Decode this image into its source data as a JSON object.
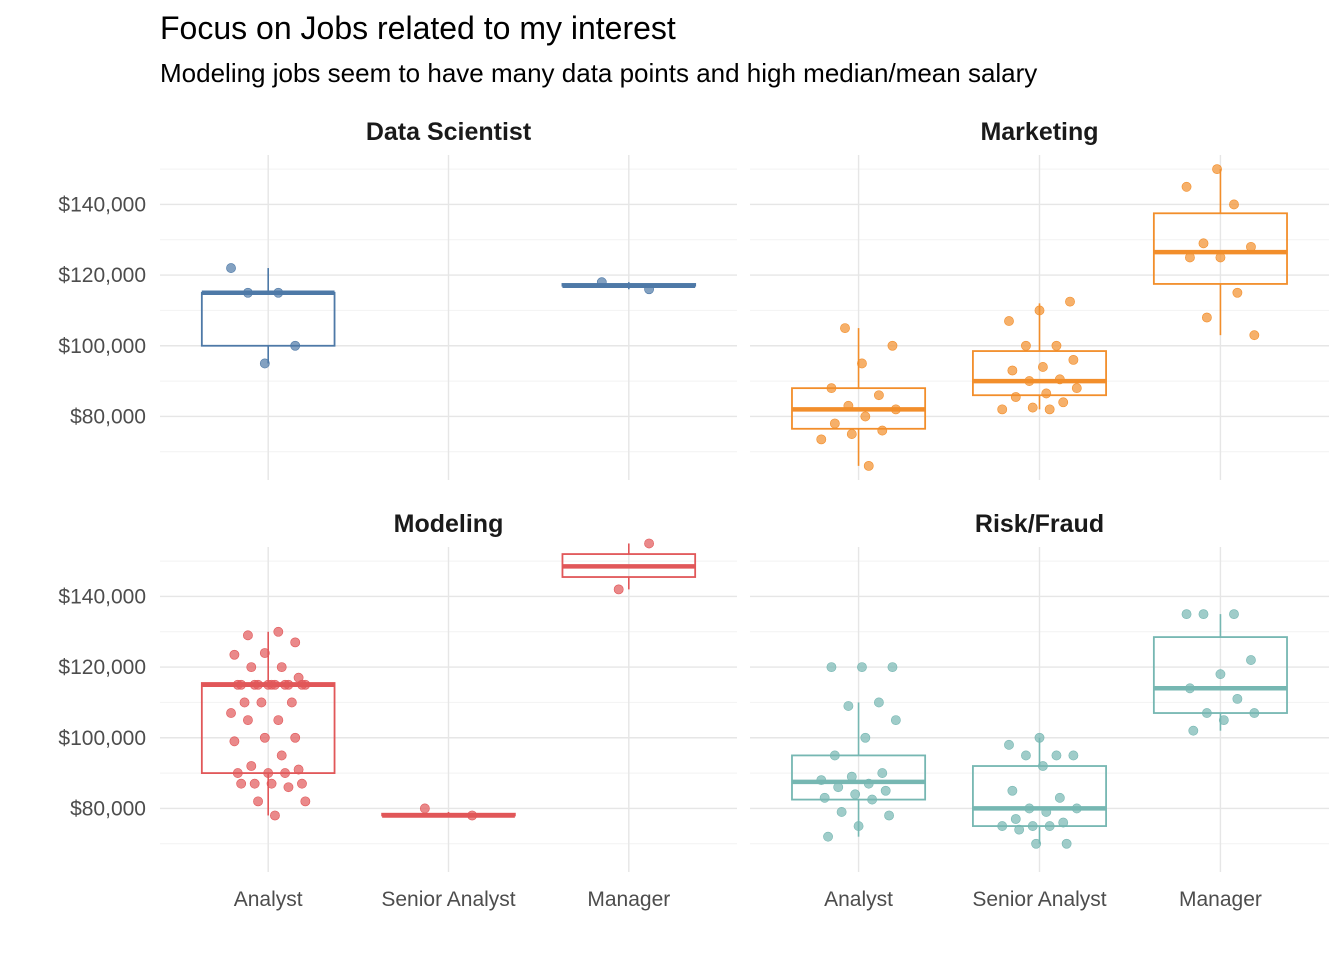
{
  "chart_data": {
    "type": "box",
    "title": "Focus on Jobs related to my interest",
    "subtitle": "Modeling jobs seem to have many data points and high median/mean salary",
    "xlabel": "",
    "ylabel": "",
    "categories": [
      "Analyst",
      "Senior Analyst",
      "Manager"
    ],
    "y_ticks": [
      "$80,000",
      "$100,000",
      "$120,000",
      "$140,000"
    ],
    "y_tick_values": [
      80000,
      100000,
      120000,
      140000
    ],
    "grid": true,
    "facets": [
      {
        "name": "Data Scientist",
        "color": "#4e79a7",
        "ylim": [
          62000,
          154000
        ],
        "boxes": [
          {
            "category": "Analyst",
            "lower": 95000,
            "q1": 100000,
            "median": 115000,
            "q3": 115000,
            "upper": 122000,
            "points": [
              122000,
              115000,
              115000,
              100000,
              95000
            ]
          },
          {
            "category": "Manager",
            "lower": 116000,
            "q1": 117000,
            "median": 117000,
            "q3": 117500,
            "upper": 118000,
            "points": [
              118000,
              116000
            ]
          }
        ]
      },
      {
        "name": "Marketing",
        "color": "#f28e2b",
        "ylim": [
          62000,
          154000
        ],
        "boxes": [
          {
            "category": "Analyst",
            "lower": 66000,
            "q1": 76500,
            "median": 82000,
            "q3": 88000,
            "upper": 105000,
            "points": [
              105000,
              100000,
              95000,
              88000,
              86000,
              83000,
              82000,
              80000,
              78000,
              76000,
              75000,
              73500,
              66000
            ]
          },
          {
            "category": "Senior Analyst",
            "lower": 82000,
            "q1": 86000,
            "median": 90000,
            "q3": 98500,
            "upper": 112000,
            "points": [
              112500,
              110000,
              107000,
              100000,
              100000,
              96000,
              94000,
              93000,
              90500,
              90000,
              88000,
              86500,
              85500,
              84000,
              82500,
              82000,
              82000
            ]
          },
          {
            "category": "Manager",
            "lower": 103000,
            "q1": 117500,
            "median": 126500,
            "q3": 137500,
            "upper": 150000,
            "points": [
              150000,
              145000,
              140000,
              129000,
              128000,
              125000,
              125000,
              115000,
              108000,
              103000
            ]
          }
        ]
      },
      {
        "name": "Modeling",
        "color": "#e15759",
        "ylim": [
          62000,
          154000
        ],
        "boxes": [
          {
            "category": "Analyst",
            "lower": 78000,
            "q1": 90000,
            "median": 115000,
            "q3": 115500,
            "upper": 130000,
            "points": [
              130000,
              129000,
              127000,
              124000,
              123500,
              120000,
              120000,
              117000,
              115000,
              115000,
              115000,
              115000,
              115000,
              115000,
              115000,
              115000,
              115000,
              115000,
              115000,
              110000,
              110000,
              110000,
              107000,
              105000,
              105000,
              100000,
              100000,
              99000,
              95000,
              92000,
              91000,
              90000,
              90000,
              90000,
              87000,
              87000,
              87000,
              87000,
              86000,
              82000,
              82000,
              78000
            ]
          },
          {
            "category": "Senior Analyst",
            "lower": 77500,
            "q1": 78000,
            "median": 78000,
            "q3": 78500,
            "upper": 79000,
            "points": [
              80000,
              78000
            ]
          },
          {
            "category": "Manager",
            "lower": 142000,
            "q1": 145500,
            "median": 148500,
            "q3": 152000,
            "upper": 155000,
            "points": [
              155000,
              142000
            ]
          }
        ]
      },
      {
        "name": "Risk/Fraud",
        "color": "#76b7b2",
        "ylim": [
          62000,
          154000
        ],
        "boxes": [
          {
            "category": "Analyst",
            "lower": 72000,
            "q1": 82500,
            "median": 87500,
            "q3": 95000,
            "upper": 110000,
            "points": [
              120000,
              120000,
              120000,
              110000,
              109000,
              105000,
              100000,
              95000,
              90000,
              89000,
              88000,
              87000,
              86000,
              85000,
              84000,
              83000,
              82500,
              79000,
              78000,
              75000,
              72000
            ]
          },
          {
            "category": "Senior Analyst",
            "lower": 70000,
            "q1": 75000,
            "median": 80000,
            "q3": 92000,
            "upper": 100000,
            "points": [
              100000,
              98000,
              95000,
              95000,
              95000,
              92000,
              85000,
              83000,
              80000,
              80000,
              79000,
              77000,
              76000,
              75000,
              75000,
              75000,
              74000,
              70000,
              70000
            ]
          },
          {
            "category": "Manager",
            "lower": 102000,
            "q1": 107000,
            "median": 114000,
            "q3": 128500,
            "upper": 135000,
            "points": [
              135000,
              135000,
              135000,
              122000,
              118000,
              114000,
              111000,
              107000,
              107000,
              105000,
              102000
            ]
          }
        ]
      }
    ]
  }
}
